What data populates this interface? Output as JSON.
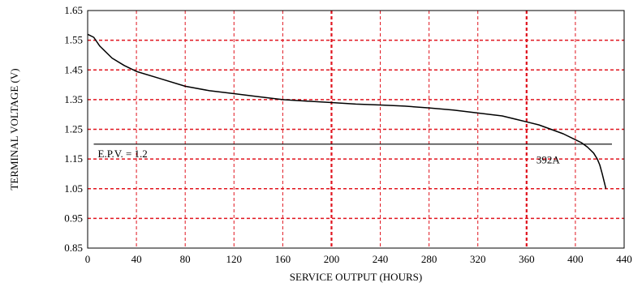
{
  "chart_data": {
    "type": "line",
    "title": "",
    "xlabel": "SERVICE OUTPUT (HOURS)",
    "ylabel": "TERMINAL VOLTAGE (V)",
    "xlim": [
      0,
      440
    ],
    "ylim": [
      0.85,
      1.65
    ],
    "xticks": [
      "0",
      "40",
      "80",
      "120",
      "160",
      "200",
      "240",
      "280",
      "320",
      "360",
      "400",
      "440"
    ],
    "yticks": [
      "0.85",
      "0.95",
      "1.05",
      "1.15",
      "1.25",
      "1.35",
      "1.45",
      "1.55",
      "1.65"
    ],
    "grid": "dashed",
    "grid_color": "#e0141e",
    "emphasized_x_gridlines": [
      200,
      360
    ],
    "series": [
      {
        "name": "392A",
        "color": "#000000",
        "x": [
          0,
          5,
          10,
          20,
          30,
          40,
          60,
          80,
          100,
          120,
          140,
          160,
          180,
          200,
          220,
          240,
          260,
          280,
          300,
          320,
          340,
          360,
          370,
          380,
          390,
          400,
          405,
          410,
          415,
          418,
          420,
          422,
          425
        ],
        "y": [
          1.57,
          1.56,
          1.53,
          1.49,
          1.465,
          1.445,
          1.42,
          1.395,
          1.38,
          1.37,
          1.36,
          1.35,
          1.345,
          1.34,
          1.335,
          1.332,
          1.328,
          1.322,
          1.315,
          1.305,
          1.295,
          1.275,
          1.265,
          1.25,
          1.235,
          1.215,
          1.205,
          1.19,
          1.17,
          1.15,
          1.13,
          1.1,
          1.05
        ]
      }
    ],
    "reference_line": {
      "label": "E.P.V. = 1.2",
      "y": 1.2,
      "x_start": 5,
      "x_end": 430
    },
    "annotations": [
      {
        "text": "392A",
        "x": 368,
        "y": 1.135
      }
    ]
  }
}
